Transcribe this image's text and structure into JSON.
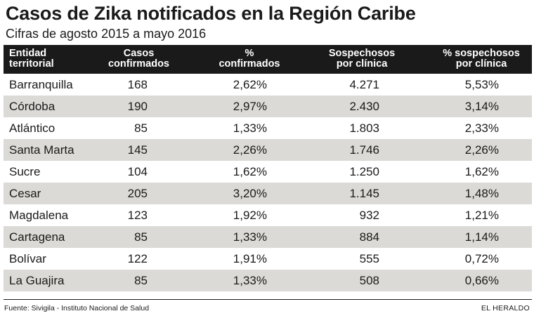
{
  "title": "Casos de Zika notificados en la Región Caribe",
  "subtitle": "Cifras de agosto 2015 a mayo 2016",
  "chart_data": {
    "type": "table",
    "title": "Casos de Zika notificados en la Región Caribe",
    "subtitle": "Cifras de agosto 2015 a mayo 2016",
    "columns": [
      "Entidad\nterritorial",
      "Casos\nconfirmados",
      "%\nconfirmados",
      "Sospechosos\npor clínica",
      "% sospechosos\npor clínica"
    ],
    "rows": [
      [
        "Barranquilla",
        "168",
        "2,62%",
        "4.271",
        "5,53%"
      ],
      [
        "Córdoba",
        "190",
        "2,97%",
        "2.430",
        "3,14%"
      ],
      [
        "Atlántico",
        "85",
        "1,33%",
        "1.803",
        "2,33%"
      ],
      [
        "Santa Marta",
        "145",
        "2,26%",
        "1.746",
        "2,26%"
      ],
      [
        "Sucre",
        "104",
        "1,62%",
        "1.250",
        "1,62%"
      ],
      [
        "Cesar",
        "205",
        "3,20%",
        "1.145",
        "1,48%"
      ],
      [
        "Magdalena",
        "123",
        "1,92%",
        "932",
        "1,21%"
      ],
      [
        "Cartagena",
        "85",
        "1,33%",
        "884",
        "1,14%"
      ],
      [
        "Bolívar",
        "122",
        "1,91%",
        "555",
        "0,72%"
      ],
      [
        "La Guajira",
        "85",
        "1,33%",
        "508",
        "0,66%"
      ]
    ]
  },
  "footer": {
    "source": "Fuente: Sivigila - Instituto Nacional de Salud",
    "brand": "EL HERALDO"
  },
  "colors": {
    "header_bg": "#1a1a1a",
    "header_text": "#ffffff",
    "row_shade": "#dcdad6"
  }
}
